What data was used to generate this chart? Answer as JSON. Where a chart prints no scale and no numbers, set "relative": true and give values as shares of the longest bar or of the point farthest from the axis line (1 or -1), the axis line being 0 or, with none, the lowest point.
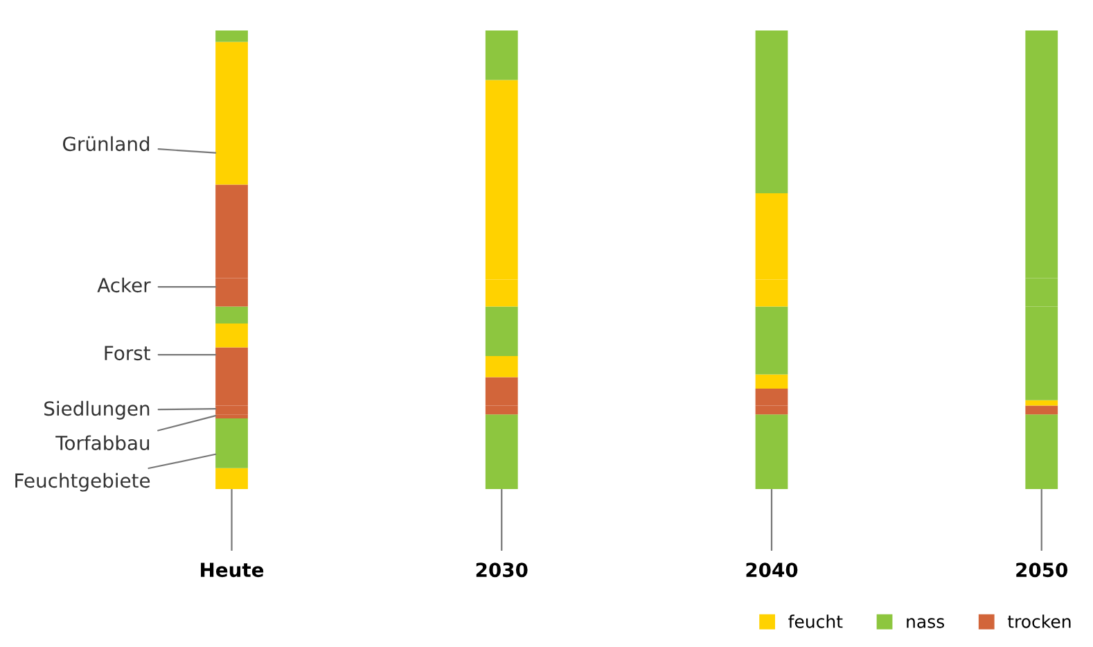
{
  "chart_data": {
    "type": "bar",
    "stacked": true,
    "relative": true,
    "legend": "bottom right",
    "categories": [
      "Heute",
      "2030",
      "2040",
      "2050"
    ],
    "series": [
      {
        "name": "feucht",
        "color": "#ffd200",
        "values": [
          0.046,
          0,
          0,
          0
        ]
      },
      {
        "name": "nass",
        "color": "#8dc63f",
        "values": [
          0.108,
          0.154,
          0.154,
          0.154
        ]
      },
      {
        "name": "trocken",
        "color": "#d2653a",
        "values": [
          0.009,
          0,
          0,
          0
        ]
      },
      {
        "color": "#8dc63f",
        "values": [
          0,
          0.009,
          0.009,
          0.009
        ]
      },
      {
        "color": "#d2653a",
        "values": [
          0.019,
          0.019,
          0.019,
          0.019
        ]
      },
      {
        "color": "#d2653a",
        "values": [
          0.127,
          0.062,
          0.037,
          0
        ]
      },
      {
        "color": "#ffd200",
        "values": [
          0.052,
          0.046,
          0.031,
          0.012
        ]
      },
      {
        "color": "#8dc63f",
        "values": [
          0.037,
          0.108,
          0.148,
          0.204
        ]
      },
      {
        "color": "#d2653a",
        "values": [
          0.062,
          0,
          0,
          0
        ]
      },
      {
        "color": "#ffd200",
        "values": [
          0,
          0.059,
          0.059,
          0
        ]
      },
      {
        "color": "#8dc63f",
        "values": [
          0,
          0,
          0,
          0.062
        ]
      },
      {
        "color": "#d2653a",
        "values": [
          0.204,
          0,
          0,
          0
        ]
      },
      {
        "color": "#ffd200",
        "values": [
          0.311,
          0.435,
          0.188,
          0
        ]
      },
      {
        "color": "#8dc63f",
        "values": [
          0.025,
          0.108,
          0.355,
          0.54
        ]
      }
    ],
    "annotations": [
      "Grünland",
      "Acker",
      "Forst",
      "Siedlungen",
      "Torfabbau",
      "Feuchtgebiete"
    ]
  }
}
